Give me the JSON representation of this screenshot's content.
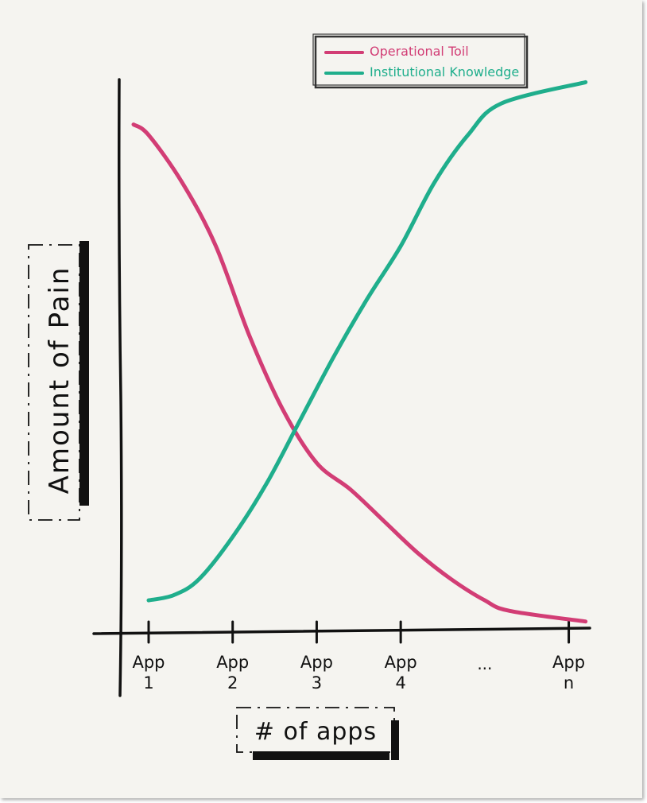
{
  "chart_data": {
    "type": "line",
    "title": "",
    "xlabel": "# of apps",
    "ylabel": "Amount of Pain",
    "categories": [
      "App 1",
      "App 2",
      "App 3",
      "App 4",
      "...",
      "App n"
    ],
    "tick_labels": [
      {
        "line1": "App",
        "line2": "1"
      },
      {
        "line1": "App",
        "line2": "2"
      },
      {
        "line1": "App",
        "line2": "3"
      },
      {
        "line1": "App",
        "line2": "4"
      },
      {
        "line1": "...",
        "line2": ""
      },
      {
        "line1": "App",
        "line2": "n"
      }
    ],
    "x_domain": [
      0.65,
      6.25
    ],
    "y_domain": [
      0,
      100
    ],
    "grid": false,
    "legend_position": "top-right",
    "series": [
      {
        "name": "Operational Toil",
        "color": "#d23d75",
        "points": [
          {
            "x": 0.82,
            "y": 96
          },
          {
            "x": 1.0,
            "y": 94
          },
          {
            "x": 1.4,
            "y": 85
          },
          {
            "x": 1.8,
            "y": 73
          },
          {
            "x": 2.2,
            "y": 56
          },
          {
            "x": 2.6,
            "y": 42
          },
          {
            "x": 3.0,
            "y": 32
          },
          {
            "x": 3.4,
            "y": 27
          },
          {
            "x": 3.8,
            "y": 21
          },
          {
            "x": 4.2,
            "y": 15
          },
          {
            "x": 4.6,
            "y": 10
          },
          {
            "x": 5.0,
            "y": 6
          },
          {
            "x": 5.3,
            "y": 4
          },
          {
            "x": 6.2,
            "y": 2
          }
        ]
      },
      {
        "name": "Institutional Knowledge",
        "color": "#1fae8c",
        "points": [
          {
            "x": 1.0,
            "y": 6
          },
          {
            "x": 1.3,
            "y": 7
          },
          {
            "x": 1.6,
            "y": 10
          },
          {
            "x": 2.0,
            "y": 18
          },
          {
            "x": 2.4,
            "y": 28
          },
          {
            "x": 2.8,
            "y": 40
          },
          {
            "x": 3.2,
            "y": 52
          },
          {
            "x": 3.6,
            "y": 63
          },
          {
            "x": 4.0,
            "y": 73
          },
          {
            "x": 4.4,
            "y": 85
          },
          {
            "x": 4.8,
            "y": 94
          },
          {
            "x": 5.2,
            "y": 100
          },
          {
            "x": 6.2,
            "y": 104
          }
        ]
      }
    ]
  }
}
